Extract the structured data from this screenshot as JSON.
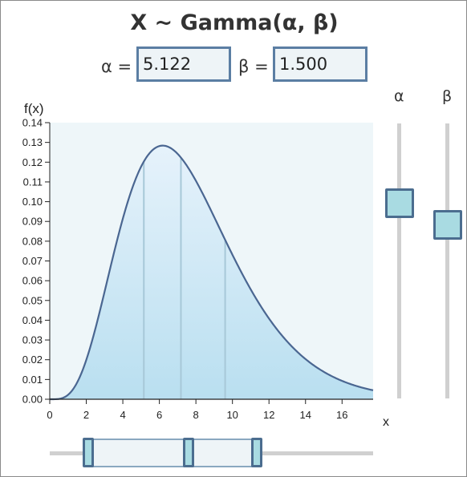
{
  "title": "X ~ Gamma(α, β)",
  "alpha": {
    "label": "α =",
    "value": "5.122"
  },
  "beta": {
    "label": "β =",
    "value": "1.500"
  },
  "sliders": {
    "alpha": {
      "label": "α",
      "level": 0.29
    },
    "beta": {
      "label": "β",
      "level": 0.37
    }
  },
  "range_slider": {
    "min": 0.12,
    "median": 0.43,
    "max": 0.64
  },
  "colors": {
    "curve": "#4a6691",
    "fill_top": "#e6f2fb",
    "fill_bottom": "#b9dff0",
    "plot_bg": "#eef6f9",
    "quartile_line": "#a7c8d8"
  },
  "chart_data": {
    "type": "area",
    "title": "X ~ Gamma(α, β)",
    "xlabel": "x",
    "ylabel": "f(x)",
    "xlim": [
      0,
      17.7
    ],
    "ylim": [
      0,
      0.14
    ],
    "x_ticks": [
      "0",
      "2",
      "4",
      "6",
      "8",
      "10",
      "12",
      "14",
      "16"
    ],
    "y_ticks": [
      "0.00",
      "0.01",
      "0.02",
      "0.03",
      "0.04",
      "0.05",
      "0.06",
      "0.07",
      "0.08",
      "0.09",
      "0.10",
      "0.11",
      "0.12",
      "0.13",
      "0.14"
    ],
    "distribution": {
      "family": "gamma",
      "shape": 5.122,
      "scale": 1.5
    },
    "quartiles": [
      5.15,
      7.18,
      9.6
    ],
    "grid": false
  }
}
